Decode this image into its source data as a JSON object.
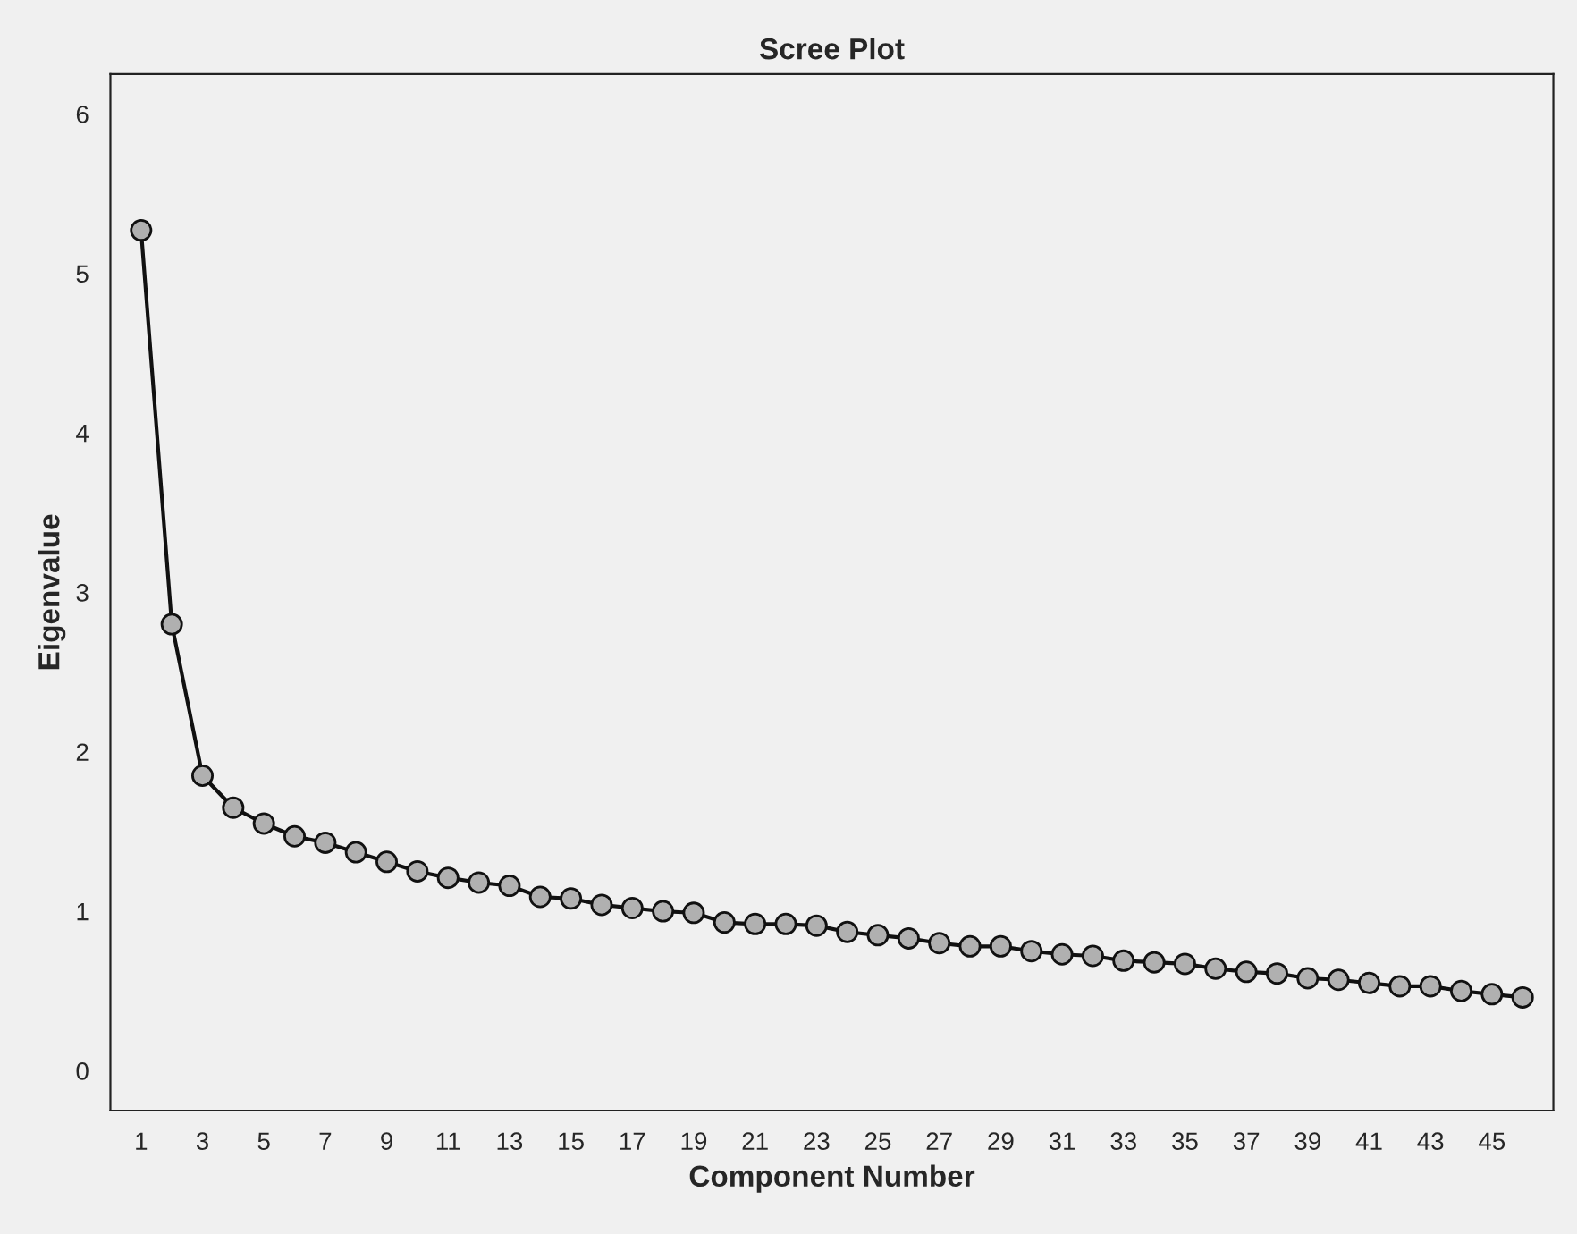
{
  "chart_data": {
    "type": "line",
    "title": "Scree Plot",
    "xlabel": "Component Number",
    "ylabel": "Eigenvalue",
    "categories": [
      "1",
      null,
      "3",
      null,
      "5",
      null,
      "7",
      null,
      "9",
      null,
      "11",
      null,
      "13",
      null,
      "15",
      null,
      "17",
      null,
      "19",
      null,
      "21",
      null,
      "23",
      null,
      "25",
      null,
      "27",
      null,
      "29",
      null,
      "31",
      null,
      "33",
      null,
      "35",
      null,
      "37",
      null,
      "39",
      null,
      "41",
      null,
      "43",
      null,
      "45",
      null
    ],
    "series": [
      {
        "color": "#111111",
        "values": [
          5.27,
          2.8,
          1.85,
          1.65,
          1.55,
          1.47,
          1.43,
          1.37,
          1.31,
          1.25,
          1.21,
          1.18,
          1.16,
          1.09,
          1.08,
          1.04,
          1.02,
          1.0,
          0.99,
          0.93,
          0.92,
          0.92,
          0.91,
          0.87,
          0.85,
          0.83,
          0.8,
          0.78,
          0.78,
          0.75,
          0.73,
          0.72,
          0.69,
          0.68,
          0.67,
          0.64,
          0.62,
          0.61,
          0.58,
          0.57,
          0.55,
          0.53,
          0.53,
          0.5,
          0.48,
          0.46
        ]
      }
    ],
    "ylim": [
      -0.25,
      6.25
    ],
    "yticks": [
      0,
      1,
      2,
      3,
      4,
      5,
      6
    ],
    "marker": "circle",
    "line_style": "solid",
    "grid": false,
    "legend": false
  }
}
